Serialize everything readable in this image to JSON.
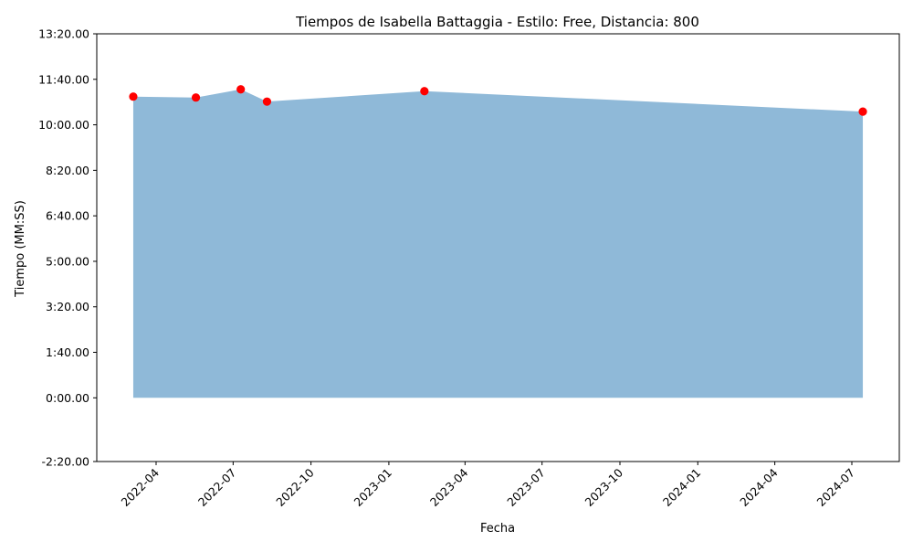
{
  "chart_data": {
    "type": "area",
    "title": "Tiempos de Isabella Battaggia - Estilo: Free, Distancia: 800",
    "xlabel": "Fecha",
    "ylabel": "Tiempo (MM:SS)",
    "x_ticks": [
      "2022-04",
      "2022-07",
      "2022-10",
      "2023-01",
      "2023-04",
      "2023-07",
      "2023-10",
      "2024-01",
      "2024-04",
      "2024-07"
    ],
    "y_ticks": [
      "-2:20.00",
      "0:00.00",
      "1:40.00",
      "3:20.00",
      "5:00.00",
      "6:40.00",
      "8:20.00",
      "10:00.00",
      "11:40.00",
      "13:20.00"
    ],
    "ylim": [
      "-2:20.00",
      "13:20.00"
    ],
    "grid": false,
    "series": [
      {
        "area_color": "#8fb9d8",
        "marker_color": "#ff0000",
        "points": [
          {
            "date": "2022-03-05",
            "time": "11:02.00"
          },
          {
            "date": "2022-05-18",
            "time": "11:00.00"
          },
          {
            "date": "2022-07-10",
            "time": "11:18.00"
          },
          {
            "date": "2022-08-10",
            "time": "10:51.00"
          },
          {
            "date": "2023-02-12",
            "time": "11:14.00"
          },
          {
            "date": "2024-07-14",
            "time": "10:29.00"
          }
        ]
      }
    ]
  }
}
